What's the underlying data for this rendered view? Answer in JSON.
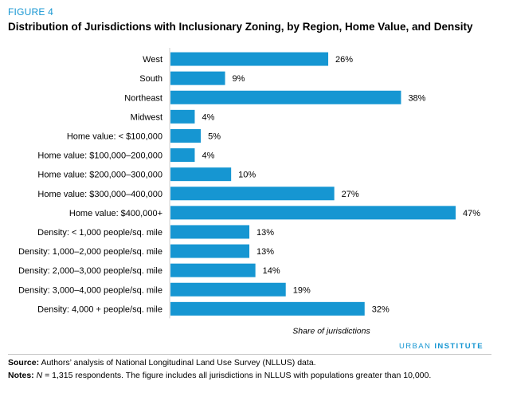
{
  "figure_label": "FIGURE 4",
  "chart_data": {
    "type": "bar",
    "orientation": "horizontal",
    "title": "Distribution of Jurisdictions with Inclusionary Zoning, by Region, Home Value, and Density",
    "xlabel": "Share of jurisdictions",
    "xlim": [
      0,
      47
    ],
    "grid": false,
    "bar_color": "#1696d2",
    "categories": [
      "West",
      "South",
      "Northeast",
      "Midwest",
      "Home value: < $100,000",
      "Home value: $100,000–200,000",
      "Home value: $200,000–300,000",
      "Home value: $300,000–400,000",
      "Home value: $400,000+",
      "Density: < 1,000 people/sq. mile",
      "Density: 1,000–2,000 people/sq. mile",
      "Density: 2,000–3,000 people/sq. mile",
      "Density: 3,000–4,000 people/sq. mile",
      "Density: 4,000 + people/sq. mile"
    ],
    "values": [
      26,
      9,
      38,
      4,
      5,
      4,
      10,
      27,
      47,
      13,
      13,
      14,
      19,
      32
    ],
    "value_labels": [
      "26%",
      "9%",
      "38%",
      "4%",
      "5%",
      "4%",
      "10%",
      "27%",
      "47%",
      "13%",
      "13%",
      "14%",
      "19%",
      "32%"
    ]
  },
  "branding": {
    "word1": "URBAN",
    "word2": "INSTITUTE"
  },
  "notes": {
    "source_label": "Source:",
    "source_text": "Authors’ analysis of National Longitudinal Land Use Survey (NLLUS) data.",
    "notes_label": "Notes:",
    "n_symbol": "N",
    "notes_text": "= 1,315 respondents. The figure includes all jurisdictions in NLLUS with populations greater than 10,000."
  }
}
